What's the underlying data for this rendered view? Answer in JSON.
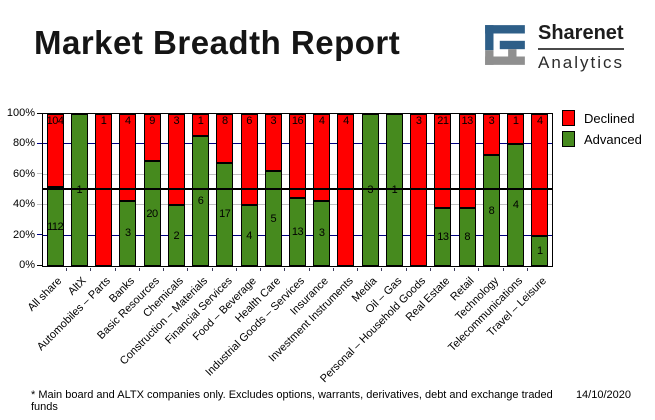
{
  "header": {
    "title": "Market Breadth Report",
    "logo": {
      "line1": "Sharenet",
      "line2": "Analytics",
      "icon": "sharenet-s-maze-icon",
      "blue": "#2e5f88",
      "gray": "#8f8f8f"
    }
  },
  "chart_data": {
    "type": "bar",
    "variant": "100pct-stacked-column",
    "categories": [
      "All share",
      "AltX",
      "Automobiles – Parts",
      "Banks",
      "Basic Resources",
      "Chemicals",
      "Construction – Materials",
      "Financial Services",
      "Food – Beverage",
      "Health Care",
      "Industrial Goods – Services",
      "Insurance",
      "Investment Instruments",
      "Media",
      "Oil – Gas",
      "Personal – Household Goods",
      "Real Estate",
      "Retail",
      "Technology",
      "Telecommunications",
      "Travel – Leisure"
    ],
    "series": [
      {
        "name": "Declined",
        "color": "#ff0000",
        "values": [
          104,
          0,
          1,
          4,
          9,
          3,
          1,
          8,
          6,
          3,
          16,
          4,
          4,
          0,
          0,
          3,
          21,
          13,
          3,
          1,
          4
        ]
      },
      {
        "name": "Advanced",
        "color": "#468a1e",
        "values": [
          112,
          1,
          0,
          3,
          20,
          2,
          6,
          17,
          4,
          5,
          13,
          3,
          0,
          3,
          1,
          0,
          13,
          8,
          8,
          4,
          1
        ]
      }
    ],
    "stack_order_bottom_to_top": [
      "Advanced",
      "Declined"
    ],
    "y_axis": {
      "min": 0,
      "max": 100,
      "ticks": [
        "0%",
        "20%",
        "40%",
        "60%",
        "80%",
        "100%"
      ]
    },
    "gridlines": {
      "navy_at": [
        20,
        80
      ],
      "silver_at": [
        40,
        60
      ],
      "navy_color": "#000080",
      "silver_color": "#c0c0c0"
    },
    "midline": {
      "value": 50,
      "color": "#000000"
    },
    "legend": {
      "position": "top-right",
      "entries": [
        "Declined",
        "Advanced"
      ]
    },
    "data_labels": "raw counts shown inside segments"
  },
  "footer": {
    "note": "* Main board and ALTX companies only. Excludes options, warrants, derivatives, debt and exchange traded funds",
    "date": "14/10/2020"
  }
}
